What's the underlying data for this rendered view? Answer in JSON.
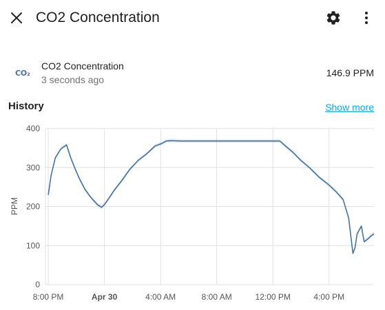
{
  "header": {
    "title": "CO2 Concentration",
    "close_icon": "close-icon",
    "settings_icon": "gear-icon",
    "menu_icon": "more-vertical-icon"
  },
  "entity": {
    "icon_text": "CO₂",
    "name": "CO2 Concentration",
    "last_changed": "3 seconds ago",
    "state": "146.9 PPM"
  },
  "history": {
    "title": "History",
    "show_more": "Show more"
  },
  "colors": {
    "accent": "#03a9f4",
    "series": "#44739e",
    "grid": "#e0e0e0"
  },
  "chart_data": {
    "type": "line",
    "ylabel": "PPM",
    "ylim": [
      0,
      400
    ],
    "y_ticks": [
      0,
      100,
      200,
      300,
      400
    ],
    "x_ticks": [
      {
        "label": "8:00 PM",
        "h": 0,
        "bold": false
      },
      {
        "label": "Apr 30",
        "h": 4,
        "bold": true
      },
      {
        "label": "4:00 AM",
        "h": 8,
        "bold": false
      },
      {
        "label": "8:00 AM",
        "h": 12,
        "bold": false
      },
      {
        "label": "12:00 PM",
        "h": 16,
        "bold": false
      },
      {
        "label": "4:00 PM",
        "h": 20,
        "bold": false
      }
    ],
    "xlim_hours": [
      -0.2,
      23.2
    ],
    "series": [
      {
        "x": [
          0.0,
          0.2,
          0.5,
          0.9,
          1.3,
          1.6,
          1.9,
          2.2,
          2.6,
          3.0,
          3.5,
          3.8,
          4.0,
          4.3,
          4.7,
          5.2,
          5.8,
          6.4,
          7.0,
          7.6,
          8.1,
          8.4,
          8.8,
          9.4,
          10.0,
          11.0,
          12.0,
          13.0,
          14.0,
          15.0,
          16.0,
          16.5,
          16.9,
          17.4,
          18.0,
          18.6,
          19.3,
          20.0,
          20.5,
          21.0,
          21.4,
          21.7,
          21.85,
          22.0,
          22.3,
          22.5,
          22.8,
          23.0,
          23.2
        ],
        "y": [
          230,
          280,
          325,
          348,
          358,
          325,
          298,
          273,
          245,
          225,
          205,
          198,
          205,
          220,
          242,
          265,
          295,
          318,
          335,
          355,
          362,
          368,
          369,
          368,
          368,
          368,
          368,
          368,
          368,
          368,
          368,
          368,
          355,
          340,
          318,
          300,
          275,
          255,
          238,
          218,
          170,
          80,
          95,
          130,
          150,
          110,
          118,
          125,
          130
        ]
      }
    ]
  }
}
